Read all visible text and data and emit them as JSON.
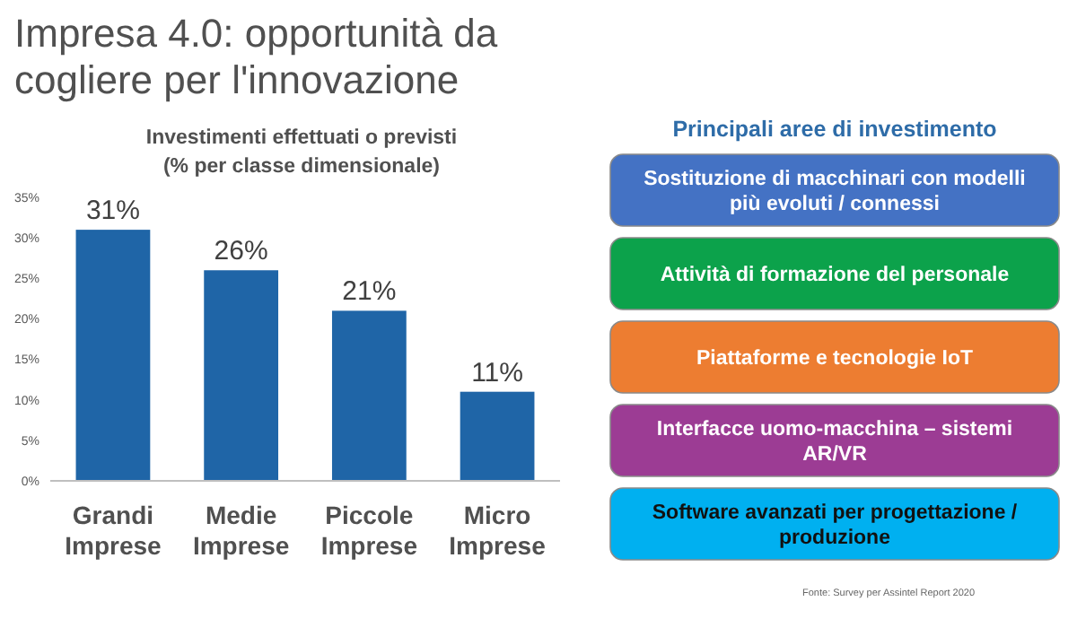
{
  "chart_data": [
    {
      "type": "bar",
      "title": "Impresa 4.0: opportunità da cogliere per l'innovazione",
      "subtitle": "Investimenti effettuati o previsti (% per classe dimensionale)",
      "categories": [
        "Grandi Imprese",
        "Medie Imprese",
        "Piccole Imprese",
        "Micro Imprese"
      ],
      "values": [
        31,
        26,
        21,
        11
      ],
      "value_labels": [
        "31%",
        "26%",
        "21%",
        "11%"
      ],
      "color": "#1f65a7",
      "ylim": [
        0,
        35
      ],
      "yticks": [
        {
          "value": 0,
          "label": "0%"
        },
        {
          "value": 5,
          "label": "5%"
        },
        {
          "value": 10,
          "label": "10%"
        },
        {
          "value": 15,
          "label": "15%"
        },
        {
          "value": 20,
          "label": "20%"
        },
        {
          "value": 25,
          "label": "25%"
        },
        {
          "value": 30,
          "label": "30%"
        },
        {
          "value": 35,
          "label": "35%"
        }
      ],
      "grid": false
    },
    {
      "type": "other",
      "title": "Principali aree di investimento",
      "categories": [
        "Sostituzione di macchinari con modelli più evoluti / connessi",
        "Attività di formazione del personale",
        "Piattaforme e tecnologie IoT",
        "Interfacce uomo-macchina – sistemi AR/VR",
        "Software avanzati per progettazione / produzione"
      ],
      "colors": [
        "#4472c4",
        "#0ca24b",
        "#ed7d31",
        "#9c3c94",
        "#00b0f0"
      ],
      "annotations": [
        "Fonte: Survey per Assintel Report 2020"
      ]
    }
  ]
}
